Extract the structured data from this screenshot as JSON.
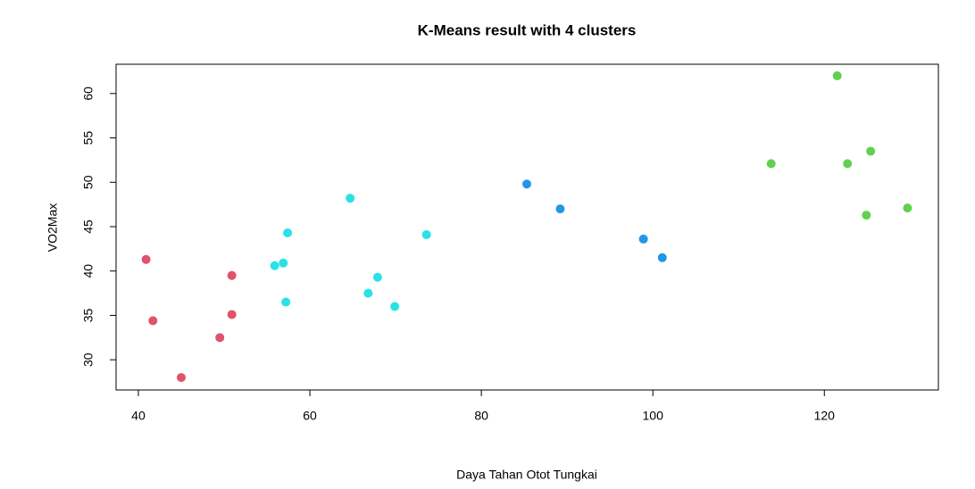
{
  "chart_data": {
    "type": "scatter",
    "title": "K-Means result with 4 clusters",
    "x_label": "Daya Tahan Otot Tungkai",
    "y_label": "VO2Max",
    "xlim": [
      37.4,
      133.3
    ],
    "ylim": [
      26.6,
      63.3
    ],
    "xticks": [
      40,
      60,
      80,
      100,
      120
    ],
    "yticks": [
      30,
      35,
      40,
      45,
      50,
      55,
      60
    ],
    "series": [
      {
        "color": "#DF536B",
        "x": [
          40.9,
          41.7,
          45.0,
          49.5,
          50.9,
          50.9
        ],
        "values": [
          41.3,
          34.4,
          28.0,
          32.5,
          39.5,
          35.1
        ]
      },
      {
        "color": "#28E2E5",
        "x": [
          64.7,
          57.4,
          56.9,
          55.9,
          57.2,
          66.8,
          67.9,
          69.9,
          73.6
        ],
        "values": [
          48.2,
          44.3,
          40.9,
          40.6,
          36.5,
          37.5,
          39.3,
          36.0,
          44.1
        ]
      },
      {
        "color": "#2297E6",
        "x": [
          85.3,
          89.2,
          98.9,
          101.1
        ],
        "values": [
          49.8,
          47.0,
          43.6,
          41.5
        ]
      },
      {
        "color": "#61D04F",
        "x": [
          121.5,
          113.8,
          122.7,
          125.4,
          124.9,
          129.7
        ],
        "values": [
          62.0,
          52.1,
          52.1,
          53.5,
          46.3,
          47.1
        ]
      }
    ]
  }
}
